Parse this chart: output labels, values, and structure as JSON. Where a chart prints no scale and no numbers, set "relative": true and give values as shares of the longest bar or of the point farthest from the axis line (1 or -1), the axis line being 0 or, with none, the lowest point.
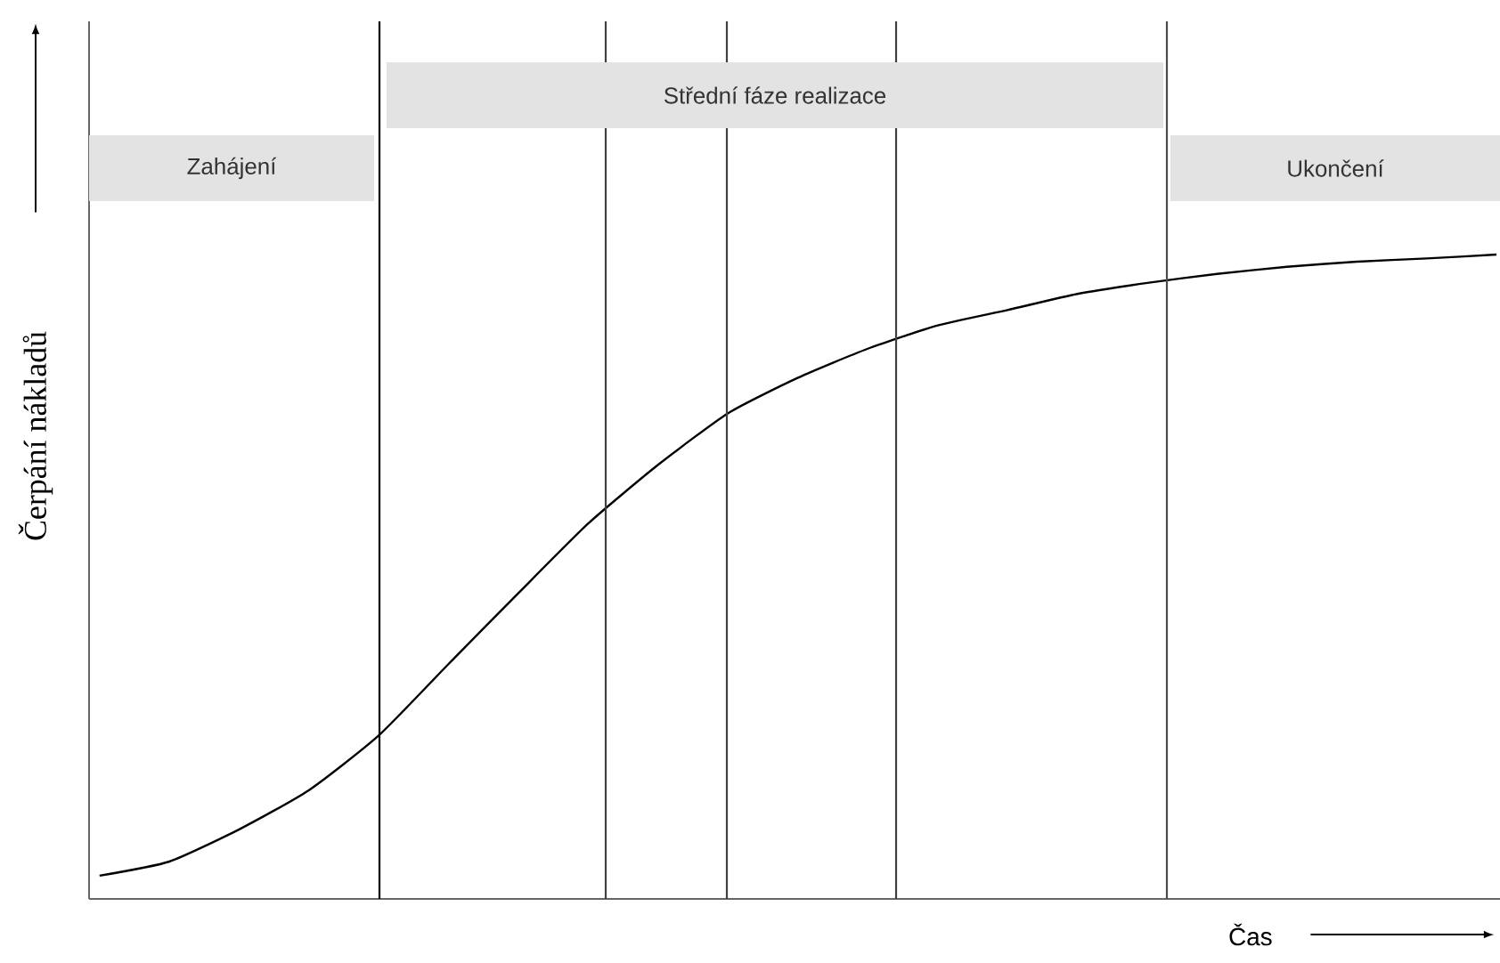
{
  "chart_data": {
    "type": "line",
    "relative": true,
    "xlabel": "Čas",
    "ylabel": "Čerpání nákladů",
    "categories": [
      null,
      null,
      null,
      null,
      null,
      null,
      null,
      null,
      null,
      null,
      null,
      null,
      null,
      null,
      null,
      null,
      null,
      null,
      null,
      null,
      null
    ],
    "series": [
      {
        "color": "#000000",
        "values": [
          0.036,
          0.058,
          0.108,
          0.169,
          0.254,
          0.365,
          0.475,
          0.583,
          0.674,
          0.754,
          0.809,
          0.854,
          0.89,
          0.914,
          0.939,
          0.956,
          0.97,
          0.981,
          0.989,
          0.994,
          1.0
        ]
      }
    ],
    "annotations": [
      "Zahájení",
      "Střední fáze realizace",
      "Ukončení"
    ],
    "marker": "none",
    "line_style": "solid"
  }
}
